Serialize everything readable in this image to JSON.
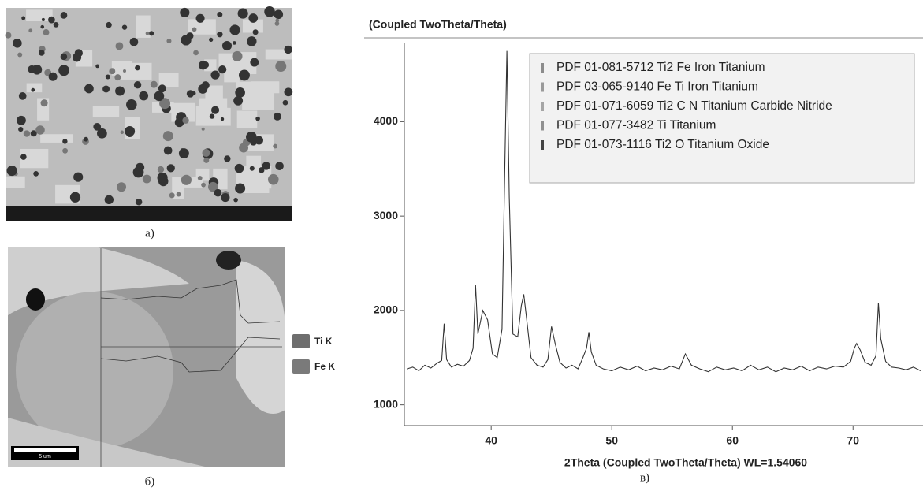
{
  "panel_labels": [
    "а)",
    "б)",
    "в)"
  ],
  "eds_legend": [
    {
      "name": "Ti K",
      "color": "#6e6e6e"
    },
    {
      "name": "Fe K",
      "color": "#7a7a7a"
    }
  ],
  "scale_bar": "5 um",
  "chart_data": {
    "type": "line",
    "title": "(Coupled TwoTheta/Theta)",
    "x_label": "2Theta (Coupled TwoTheta/Theta) WL=1.54060",
    "color": "#333333",
    "xlim": [
      32.8,
      75.8
    ],
    "ylim": [
      780,
      4830
    ],
    "xticks": [
      40,
      50,
      60,
      70
    ],
    "yticks": [
      1000,
      2000,
      3000,
      4000
    ],
    "reference_patterns": [
      {
        "name": "PDF 01-081-5712 Ti2 Fe Iron Titanium",
        "color": "#8c8c8c"
      },
      {
        "name": "PDF 03-065-9140 Fe Ti Iron Titanium",
        "color": "#9a9a9a"
      },
      {
        "name": "PDF 01-071-6059 Ti2 C N Titanium Carbide Nitride",
        "color": "#a5a5a5"
      },
      {
        "name": "PDF 01-077-3482 Ti Titanium",
        "color": "#909090"
      },
      {
        "name": "PDF 01-073-1116 Ti2 O Titanium Oxide",
        "color": "#444444"
      }
    ],
    "x": [
      33,
      33.5,
      34,
      34.5,
      35,
      35.5,
      35.9,
      36.1,
      36.3,
      36.7,
      37.2,
      37.7,
      38.2,
      38.5,
      38.7,
      38.9,
      39.3,
      39.7,
      40.1,
      40.5,
      40.9,
      41.1,
      41.3,
      41.5,
      41.8,
      42.2,
      42.5,
      42.7,
      42.9,
      43.3,
      43.8,
      44.3,
      44.7,
      45.0,
      45.3,
      45.7,
      46.2,
      46.7,
      47.2,
      47.6,
      47.9,
      48.1,
      48.3,
      48.7,
      49.3,
      50,
      50.7,
      51.4,
      52.1,
      52.8,
      53.5,
      54.2,
      54.9,
      55.6,
      56.1,
      56.6,
      57.3,
      58,
      58.7,
      59.4,
      60.1,
      60.8,
      61.5,
      62.2,
      62.9,
      63.6,
      64.3,
      65,
      65.7,
      66.4,
      67.1,
      67.8,
      68.5,
      69.2,
      69.8,
      70.1,
      70.3,
      70.6,
      71,
      71.5,
      71.9,
      72.1,
      72.3,
      72.7,
      73.2,
      73.8,
      74.4,
      75,
      75.6
    ],
    "values": [
      1380,
      1400,
      1360,
      1420,
      1390,
      1440,
      1470,
      1860,
      1480,
      1400,
      1430,
      1410,
      1470,
      1600,
      2270,
      1750,
      2000,
      1900,
      1540,
      1500,
      1800,
      3300,
      4750,
      3200,
      1750,
      1720,
      2050,
      2170,
      1950,
      1500,
      1420,
      1400,
      1480,
      1830,
      1650,
      1450,
      1390,
      1420,
      1380,
      1500,
      1600,
      1770,
      1560,
      1420,
      1380,
      1360,
      1400,
      1370,
      1410,
      1360,
      1390,
      1370,
      1410,
      1380,
      1540,
      1420,
      1380,
      1350,
      1400,
      1370,
      1390,
      1360,
      1420,
      1370,
      1400,
      1350,
      1390,
      1370,
      1410,
      1360,
      1400,
      1380,
      1410,
      1400,
      1460,
      1600,
      1650,
      1580,
      1450,
      1420,
      1520,
      2080,
      1700,
      1460,
      1400,
      1390,
      1370,
      1400,
      1360
    ]
  }
}
